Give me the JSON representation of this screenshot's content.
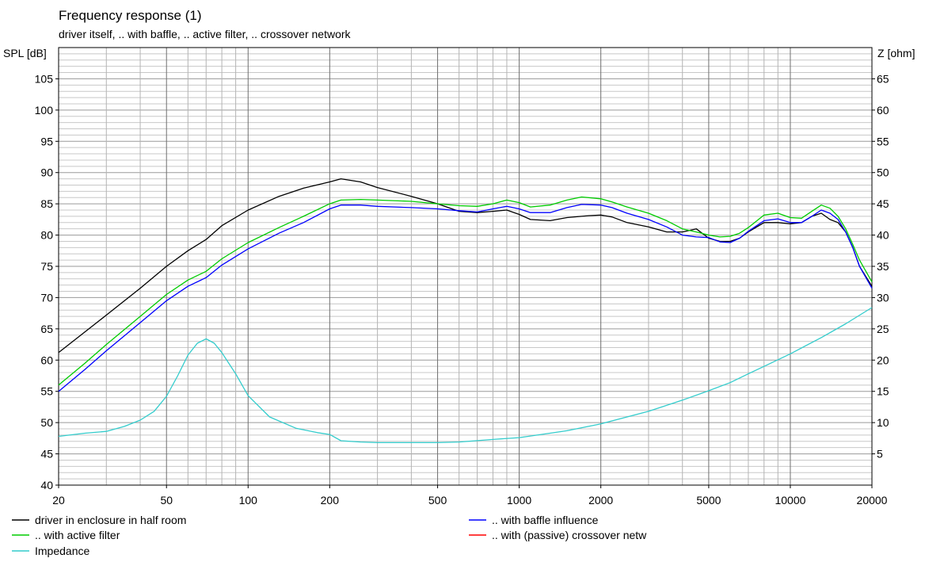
{
  "chart_data": {
    "type": "line",
    "title": "Frequency response  (1)",
    "subtitle": "driver itself, .. with baffle, .. active filter, .. crossover network",
    "ylabel": "SPL [dB]",
    "y2label": "Z [ohm]",
    "x_scale": "log",
    "xlim": [
      20,
      20000
    ],
    "ylim": [
      40,
      110
    ],
    "y2lim": [
      0,
      70
    ],
    "x_ticks": [
      20,
      50,
      100,
      200,
      500,
      1000,
      2000,
      5000,
      10000,
      20000
    ],
    "y_ticks": [
      40,
      45,
      50,
      55,
      60,
      65,
      70,
      75,
      80,
      85,
      90,
      95,
      100,
      105
    ],
    "y2_ticks": [
      5,
      10,
      15,
      20,
      25,
      30,
      35,
      40,
      45,
      50,
      55,
      60,
      65
    ],
    "grid": true,
    "legend_placement": "bottom",
    "series": [
      {
        "name": "driver in enclosure in half room",
        "color": "#000000",
        "axis": "left",
        "points": [
          [
            20,
            61.2
          ],
          [
            25,
            64.5
          ],
          [
            30,
            67.2
          ],
          [
            40,
            71.5
          ],
          [
            50,
            75
          ],
          [
            60,
            77.5
          ],
          [
            70,
            79.3
          ],
          [
            80,
            81.5
          ],
          [
            100,
            84
          ],
          [
            130,
            86.2
          ],
          [
            160,
            87.5
          ],
          [
            200,
            88.5
          ],
          [
            220,
            89
          ],
          [
            260,
            88.5
          ],
          [
            300,
            87.6
          ],
          [
            400,
            86.2
          ],
          [
            500,
            85
          ],
          [
            600,
            83.8
          ],
          [
            700,
            83.6
          ],
          [
            800,
            83.8
          ],
          [
            900,
            84
          ],
          [
            1000,
            83.3
          ],
          [
            1100,
            82.5
          ],
          [
            1300,
            82.3
          ],
          [
            1500,
            82.8
          ],
          [
            1800,
            83.1
          ],
          [
            2000,
            83.2
          ],
          [
            2200,
            82.9
          ],
          [
            2500,
            82
          ],
          [
            3000,
            81.3
          ],
          [
            3500,
            80.5
          ],
          [
            4000,
            80.5
          ],
          [
            4500,
            81
          ],
          [
            5000,
            79.5
          ],
          [
            5500,
            79
          ],
          [
            6000,
            79
          ],
          [
            6500,
            79.5
          ],
          [
            7000,
            80.5
          ],
          [
            8000,
            82
          ],
          [
            9000,
            82
          ],
          [
            10000,
            81.8
          ],
          [
            11000,
            82
          ],
          [
            12000,
            83
          ],
          [
            13000,
            83.5
          ],
          [
            14000,
            82.5
          ],
          [
            15000,
            82
          ],
          [
            16000,
            80.5
          ],
          [
            17000,
            78
          ],
          [
            18000,
            75
          ],
          [
            20000,
            71.8
          ]
        ]
      },
      {
        "name": ".. with baffle influence",
        "color": "#0000ff",
        "axis": "left",
        "points": [
          [
            20,
            55
          ],
          [
            25,
            58.5
          ],
          [
            30,
            61.5
          ],
          [
            40,
            66
          ],
          [
            50,
            69.5
          ],
          [
            60,
            71.8
          ],
          [
            70,
            73.2
          ],
          [
            80,
            75.2
          ],
          [
            100,
            77.8
          ],
          [
            130,
            80.3
          ],
          [
            160,
            82
          ],
          [
            200,
            84.2
          ],
          [
            220,
            84.8
          ],
          [
            260,
            84.8
          ],
          [
            300,
            84.6
          ],
          [
            400,
            84.4
          ],
          [
            500,
            84.2
          ],
          [
            600,
            83.9
          ],
          [
            700,
            83.7
          ],
          [
            800,
            84.2
          ],
          [
            900,
            84.6
          ],
          [
            1000,
            84.2
          ],
          [
            1100,
            83.6
          ],
          [
            1300,
            83.6
          ],
          [
            1500,
            84.4
          ],
          [
            1700,
            84.9
          ],
          [
            2000,
            84.8
          ],
          [
            2200,
            84.4
          ],
          [
            2500,
            83.5
          ],
          [
            3000,
            82.5
          ],
          [
            3500,
            81.3
          ],
          [
            4000,
            80
          ],
          [
            4500,
            79.7
          ],
          [
            5000,
            79.6
          ],
          [
            5500,
            78.9
          ],
          [
            6000,
            78.8
          ],
          [
            6500,
            79.5
          ],
          [
            7000,
            80.6
          ],
          [
            8000,
            82.3
          ],
          [
            9000,
            82.6
          ],
          [
            10000,
            82
          ],
          [
            11000,
            82
          ],
          [
            12000,
            83
          ],
          [
            13000,
            84
          ],
          [
            14000,
            83.5
          ],
          [
            15000,
            82.5
          ],
          [
            16000,
            80.5
          ],
          [
            17000,
            78
          ],
          [
            18000,
            75
          ],
          [
            20000,
            71.5
          ]
        ]
      },
      {
        "name": ".. with active filter",
        "color": "#00cc00",
        "axis": "left",
        "points": [
          [
            20,
            56
          ],
          [
            25,
            59.5
          ],
          [
            30,
            62.5
          ],
          [
            40,
            67
          ],
          [
            50,
            70.5
          ],
          [
            60,
            72.8
          ],
          [
            70,
            74.2
          ],
          [
            80,
            76.2
          ],
          [
            100,
            78.8
          ],
          [
            130,
            81.2
          ],
          [
            160,
            83
          ],
          [
            200,
            85
          ],
          [
            220,
            85.6
          ],
          [
            260,
            85.7
          ],
          [
            300,
            85.6
          ],
          [
            400,
            85.4
          ],
          [
            500,
            85
          ],
          [
            600,
            84.7
          ],
          [
            700,
            84.6
          ],
          [
            800,
            85
          ],
          [
            900,
            85.6
          ],
          [
            1000,
            85.2
          ],
          [
            1100,
            84.5
          ],
          [
            1300,
            84.8
          ],
          [
            1500,
            85.6
          ],
          [
            1700,
            86.1
          ],
          [
            2000,
            85.8
          ],
          [
            2200,
            85.3
          ],
          [
            2500,
            84.5
          ],
          [
            3000,
            83.5
          ],
          [
            3500,
            82.3
          ],
          [
            4000,
            81
          ],
          [
            4500,
            80.5
          ],
          [
            5000,
            80
          ],
          [
            5500,
            79.7
          ],
          [
            6000,
            79.8
          ],
          [
            6500,
            80.3
          ],
          [
            7000,
            81.2
          ],
          [
            8000,
            83.2
          ],
          [
            9000,
            83.5
          ],
          [
            10000,
            82.8
          ],
          [
            11000,
            82.7
          ],
          [
            12000,
            83.8
          ],
          [
            13000,
            84.8
          ],
          [
            14000,
            84.3
          ],
          [
            15000,
            83
          ],
          [
            16000,
            81
          ],
          [
            17000,
            78.5
          ],
          [
            18000,
            76
          ],
          [
            20000,
            72.5
          ]
        ]
      },
      {
        "name": ".. with (passive) crossover netw",
        "color": "#ff0000",
        "axis": "left",
        "points": []
      },
      {
        "name": "Impedance",
        "color": "#33cccc",
        "axis": "right",
        "points": [
          [
            20,
            7.8
          ],
          [
            25,
            8.3
          ],
          [
            30,
            8.6
          ],
          [
            35,
            9.4
          ],
          [
            40,
            10.4
          ],
          [
            45,
            11.8
          ],
          [
            50,
            14.2
          ],
          [
            55,
            17.5
          ],
          [
            60,
            20.8
          ],
          [
            65,
            22.7
          ],
          [
            70,
            23.4
          ],
          [
            75,
            22.7
          ],
          [
            80,
            21.2
          ],
          [
            90,
            17.8
          ],
          [
            100,
            14.3
          ],
          [
            120,
            10.9
          ],
          [
            150,
            9.1
          ],
          [
            180,
            8.4
          ],
          [
            200,
            8.1
          ],
          [
            220,
            7.1
          ],
          [
            260,
            6.9
          ],
          [
            300,
            6.8
          ],
          [
            400,
            6.8
          ],
          [
            500,
            6.8
          ],
          [
            600,
            6.9
          ],
          [
            800,
            7.3
          ],
          [
            1000,
            7.6
          ],
          [
            1300,
            8.3
          ],
          [
            1500,
            8.7
          ],
          [
            2000,
            9.8
          ],
          [
            2500,
            10.9
          ],
          [
            3000,
            11.8
          ],
          [
            4000,
            13.6
          ],
          [
            5000,
            15.1
          ],
          [
            6000,
            16.4
          ],
          [
            7000,
            17.8
          ],
          [
            8000,
            19
          ],
          [
            10000,
            21
          ],
          [
            13000,
            23.6
          ],
          [
            16000,
            25.8
          ],
          [
            20000,
            28.4
          ]
        ]
      }
    ]
  }
}
